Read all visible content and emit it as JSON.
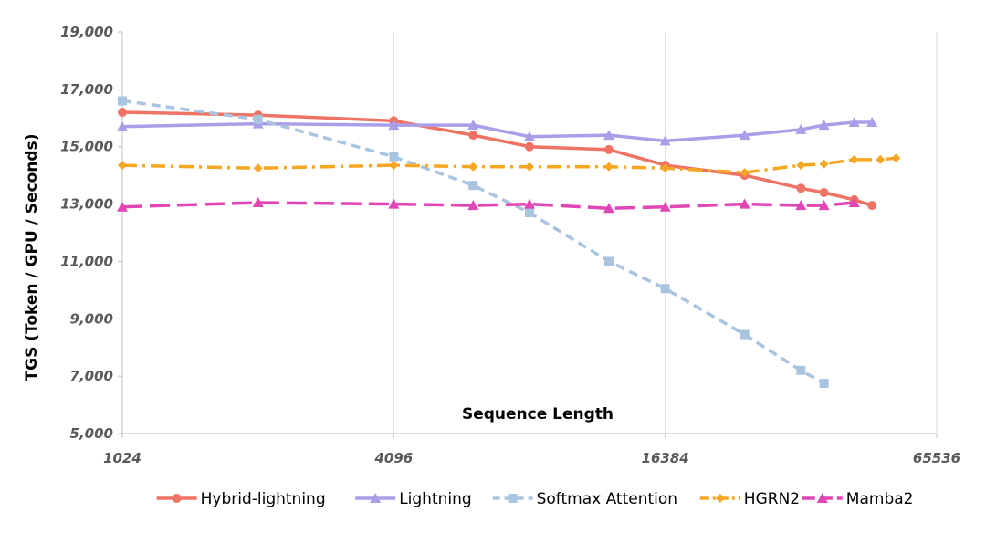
{
  "chart_data": {
    "type": "line",
    "xlabel": "Sequence Length",
    "ylabel": "TGS (Token / GPU / Seconds)",
    "xscale": "log2",
    "xlim": [
      1024,
      65536
    ],
    "ylim": [
      5000,
      19000
    ],
    "x_ticks": [
      "1024",
      "4096",
      "16384",
      "65536"
    ],
    "x_tick_values": [
      1024,
      4096,
      16384,
      65536
    ],
    "y_ticks": [
      "5,000",
      "7,000",
      "9,000",
      "11,000",
      "13,000",
      "15,000",
      "17,000",
      "19,000"
    ],
    "y_tick_values": [
      5000,
      7000,
      9000,
      11000,
      13000,
      15000,
      17000,
      19000
    ],
    "grid": "vertical",
    "legend_position": "bottom",
    "series": [
      {
        "name": "Hybrid-lightning",
        "color": "#ee7364",
        "dash": "solid",
        "marker": "circle",
        "x": [
          1024,
          2048,
          4096,
          6144,
          8192,
          12288,
          16384,
          24576,
          32768,
          36864,
          43008,
          47104
        ],
        "y": [
          16200,
          16100,
          15900,
          15400,
          15000,
          14900,
          14350,
          14000,
          13550,
          13400,
          13150,
          12950
        ]
      },
      {
        "name": "Lightning",
        "color": "#a99ee8",
        "dash": "solid",
        "marker": "triangle",
        "x": [
          1024,
          2048,
          4096,
          6144,
          8192,
          12288,
          16384,
          24576,
          32768,
          36864,
          43008,
          47104
        ],
        "y": [
          15700,
          15800,
          15750,
          15750,
          15350,
          15400,
          15200,
          15400,
          15600,
          15750,
          15850,
          15850
        ]
      },
      {
        "name": "Softmax Attention",
        "color": "#a9c4e0",
        "dash": "dash",
        "marker": "square",
        "x": [
          1024,
          2048,
          4096,
          6144,
          8192,
          12288,
          16384,
          24576,
          32768,
          36864
        ],
        "y": [
          16600,
          15950,
          14650,
          13650,
          12700,
          11000,
          10050,
          8450,
          7200,
          6750
        ]
      },
      {
        "name": "HGRN2",
        "color": "#f5a623",
        "dash": "dashdot",
        "marker": "diamond",
        "x": [
          1024,
          2048,
          4096,
          6144,
          8192,
          12288,
          16384,
          24576,
          32768,
          36864,
          43008,
          49152,
          53248
        ],
        "y": [
          14350,
          14250,
          14350,
          14300,
          14300,
          14300,
          14250,
          14100,
          14350,
          14400,
          14550,
          14550,
          14600
        ]
      },
      {
        "name": "Mamba2",
        "color": "#e246b5",
        "dash": "longdash",
        "marker": "triangle",
        "x": [
          1024,
          2048,
          4096,
          6144,
          8192,
          12288,
          16384,
          24576,
          32768,
          36864,
          43008
        ],
        "y": [
          12900,
          13050,
          13000,
          12950,
          13000,
          12850,
          12900,
          13000,
          12950,
          12950,
          13050
        ]
      }
    ]
  }
}
